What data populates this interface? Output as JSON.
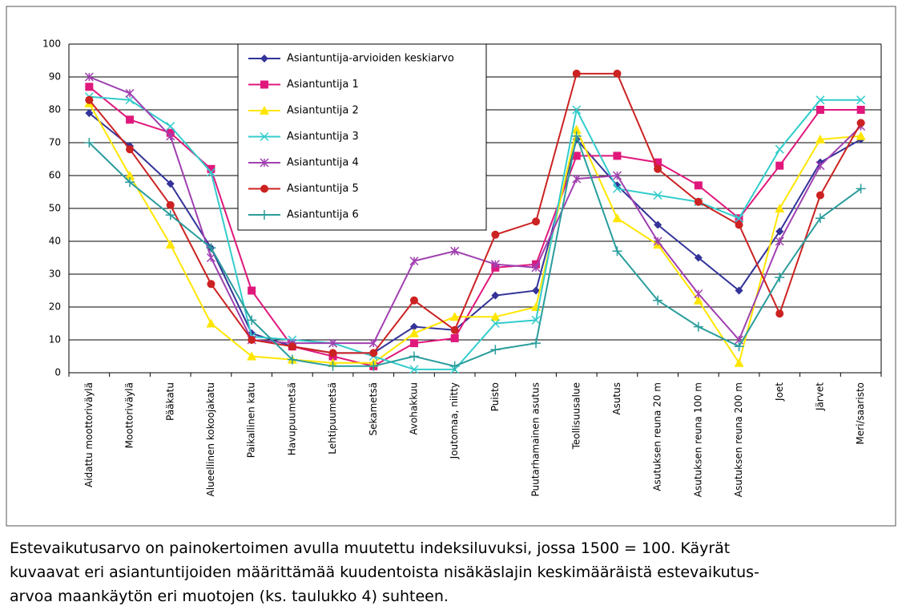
{
  "chart_data": {
    "type": "line",
    "categories": [
      "Aidattu moottoriväylä",
      "Moottoriväylä",
      "Pääkatu",
      "Alueellinen kokoojakatu",
      "Paikallinen katu",
      "Havupuumetsä",
      "Lehtipuumetsä",
      "Sekametsä",
      "Avohakkuu",
      "Joutomaa, niitty",
      "Puisto",
      "Puutarhamainen asutus",
      "Teollisuusalue",
      "Asutus",
      "Asutuksen reuna 20 m",
      "Asutuksen reuna 100 m",
      "Asutuksen reuna 200 m",
      "Joet",
      "Järvet",
      "Meri/saaristo"
    ],
    "series": [
      {
        "name": "Asiantuntija-arvioiden  keskiarvo",
        "color": "#333399",
        "marker": "diamond",
        "values": [
          79,
          69,
          57.5,
          38,
          12,
          8,
          6,
          6,
          14,
          13,
          23.5,
          25,
          71,
          57,
          45,
          35,
          25,
          43,
          64,
          71
        ]
      },
      {
        "name": "Asiantuntija 1",
        "color": "#e0187c",
        "marker": "square",
        "values": [
          87,
          77,
          73,
          62,
          25,
          8,
          5,
          2,
          9,
          10.5,
          32,
          33,
          66,
          66,
          64,
          57,
          47,
          63,
          80,
          80
        ]
      },
      {
        "name": "Asiantuntija 2",
        "color": "#ffe600",
        "marker": "triangle",
        "values": [
          82,
          60,
          39,
          15,
          5,
          4,
          3,
          3,
          12,
          17,
          17,
          20,
          74,
          47,
          39,
          22,
          3,
          50,
          71,
          72
        ]
      },
      {
        "name": "Asiantuntija 3",
        "color": "#33cccc",
        "marker": "x",
        "values": [
          84,
          83,
          75,
          61,
          11,
          10,
          9,
          5,
          1,
          1,
          15,
          16,
          80,
          56,
          54,
          52,
          47,
          68,
          83,
          83
        ]
      },
      {
        "name": "Asiantuntija 4",
        "color": "#a040b0",
        "marker": "star",
        "values": [
          90,
          85,
          72,
          35,
          10,
          9,
          9,
          9,
          34,
          37,
          33,
          32,
          59,
          60,
          40,
          24,
          10,
          40,
          63,
          75
        ]
      },
      {
        "name": "Asiantuntija 5",
        "color": "#cc2222",
        "marker": "circle",
        "values": [
          83,
          68,
          51,
          27,
          10,
          8,
          6,
          6,
          22,
          13,
          42,
          46,
          91,
          91,
          62,
          52,
          45,
          18,
          54,
          76
        ]
      },
      {
        "name": "Asiantuntija 6",
        "color": "#2a9c9c",
        "marker": "plus",
        "values": [
          70,
          58,
          48,
          38,
          16,
          4,
          2,
          2,
          5,
          2,
          7,
          9,
          72,
          37,
          22,
          14,
          8,
          29,
          47,
          56
        ]
      }
    ],
    "ylim": [
      0,
      100
    ],
    "yticks": [
      0,
      10,
      20,
      30,
      40,
      50,
      60,
      70,
      80,
      90,
      100
    ],
    "grid": true,
    "caption": [
      "Estevaikutusarvo on painokertoimen avulla muutettu indeksiluvuksi, jossa 1500 = 100. Käyrät",
      "kuvaavat eri asiantuntijoiden määrittämää kuudentoista nisäkäslajin keskimääräistä estevaikutus-",
      "arvoa maankäytön eri muotojen (ks. taulukko 4) suhteen."
    ]
  }
}
